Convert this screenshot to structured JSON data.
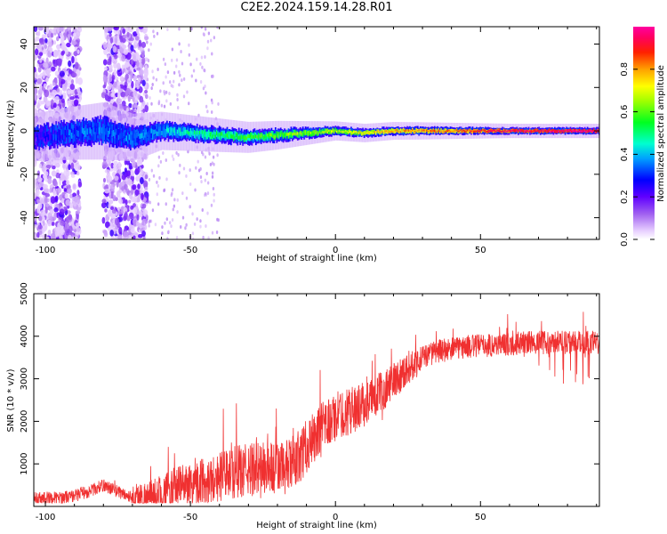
{
  "figure": {
    "title": "C2E2.2024.159.14.28.R01"
  },
  "chart_data": [
    {
      "type": "heatmap",
      "title": "C2E2.2024.159.14.28.R01",
      "xlabel": "Height of straight line (km)",
      "ylabel": "Frequency (Hz)",
      "xlim": [
        -104,
        91
      ],
      "ylim": [
        -50,
        48
      ],
      "xticks": [
        -100,
        -50,
        0,
        50
      ],
      "yticks": [
        -40,
        -20,
        0,
        20,
        40
      ],
      "grid": false,
      "colorbar": {
        "label": "Normalized spectral amplitude",
        "range": [
          0,
          1
        ],
        "ticks": [
          0.0,
          0.2,
          0.4,
          0.6,
          0.8
        ],
        "colormap": [
          "#e040e0",
          "#c8a0f0",
          "#7a00ff",
          "#0000ff",
          "#00c8ff",
          "#00ff60",
          "#b0ff00",
          "#ffff00",
          "#ff9000",
          "#ff0000",
          "#ff0080"
        ]
      },
      "ridge": {
        "description_free": true,
        "center_frequency_hz": [
          {
            "x": -104,
            "y": -3
          },
          {
            "x": -90,
            "y": -1
          },
          {
            "x": -80,
            "y": 0
          },
          {
            "x": -70,
            "y": -3
          },
          {
            "x": -60,
            "y": 0
          },
          {
            "x": -50,
            "y": -1
          },
          {
            "x": -40,
            "y": -2
          },
          {
            "x": -30,
            "y": -3
          },
          {
            "x": -20,
            "y": -2
          },
          {
            "x": -10,
            "y": -1
          },
          {
            "x": 0,
            "y": 0
          },
          {
            "x": 10,
            "y": -1
          },
          {
            "x": 20,
            "y": 0
          },
          {
            "x": 40,
            "y": 0
          },
          {
            "x": 60,
            "y": 0
          },
          {
            "x": 91,
            "y": 0
          }
        ],
        "half_width_hz": [
          {
            "x": -104,
            "y": 5
          },
          {
            "x": -80,
            "y": 6
          },
          {
            "x": -60,
            "y": 4
          },
          {
            "x": -40,
            "y": 3.5
          },
          {
            "x": -20,
            "y": 3
          },
          {
            "x": 0,
            "y": 2
          },
          {
            "x": 30,
            "y": 1.8
          },
          {
            "x": 60,
            "y": 1.5
          },
          {
            "x": 91,
            "y": 1.5
          }
        ],
        "amplitude": [
          {
            "x": -104,
            "y": 0.22
          },
          {
            "x": -90,
            "y": 0.3
          },
          {
            "x": -75,
            "y": 0.3
          },
          {
            "x": -60,
            "y": 0.35
          },
          {
            "x": -45,
            "y": 0.45
          },
          {
            "x": -30,
            "y": 0.5
          },
          {
            "x": -15,
            "y": 0.55
          },
          {
            "x": 0,
            "y": 0.6
          },
          {
            "x": 20,
            "y": 0.7
          },
          {
            "x": 40,
            "y": 0.75
          },
          {
            "x": 60,
            "y": 0.85
          },
          {
            "x": 91,
            "y": 0.9
          }
        ]
      },
      "scatter_bands_km": [
        [
          -104,
          -88
        ],
        [
          -80,
          -65
        ]
      ]
    },
    {
      "type": "line",
      "xlabel": "Height of straight line (km)",
      "ylabel": "SNR (10 * v/v)",
      "xlim": [
        -104,
        91
      ],
      "ylim": [
        0,
        5000
      ],
      "xticks": [
        -100,
        -50,
        0,
        50
      ],
      "yticks": [
        1000,
        2000,
        3000,
        4000,
        5000
      ],
      "grid": false,
      "line_color": "#f03030",
      "series": [
        {
          "x": [
            -104,
            -95,
            -90,
            -85,
            -80,
            -75,
            -70,
            -65,
            -60,
            -55,
            -50,
            -45,
            -40,
            -35,
            -30,
            -25,
            -20,
            -17,
            -15,
            -13,
            -10,
            -5,
            0,
            5,
            10,
            15,
            20,
            25,
            30,
            35,
            40,
            45,
            50,
            55,
            60,
            65,
            70,
            75,
            80,
            85,
            91
          ],
          "y": [
            200,
            200,
            250,
            350,
            500,
            350,
            200,
            200,
            300,
            450,
            550,
            600,
            700,
            800,
            850,
            900,
            900,
            900,
            1000,
            1150,
            1400,
            1800,
            2100,
            2250,
            2400,
            2650,
            2950,
            3250,
            3500,
            3650,
            3700,
            3750,
            3780,
            3800,
            3820,
            3850,
            3850,
            3850,
            3850,
            3850,
            3850
          ]
        }
      ]
    }
  ]
}
